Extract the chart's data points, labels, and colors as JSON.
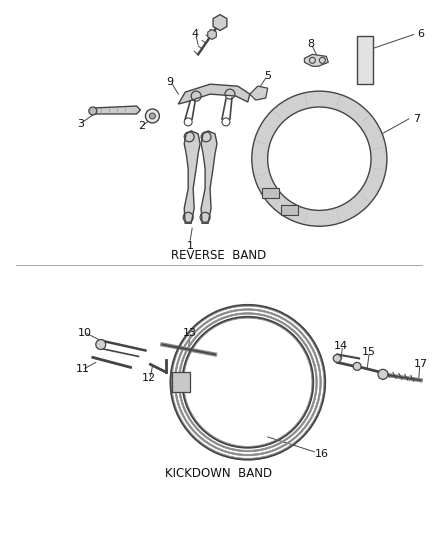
{
  "background_color": "#ffffff",
  "line_color": "#444444",
  "text_color": "#111111",
  "section1_label": "REVERSE  BAND",
  "section2_label": "KICKDOWN  BAND",
  "figsize": [
    4.38,
    5.33
  ],
  "dpi": 100,
  "font_size_labels": 8,
  "font_size_section": 8.5
}
